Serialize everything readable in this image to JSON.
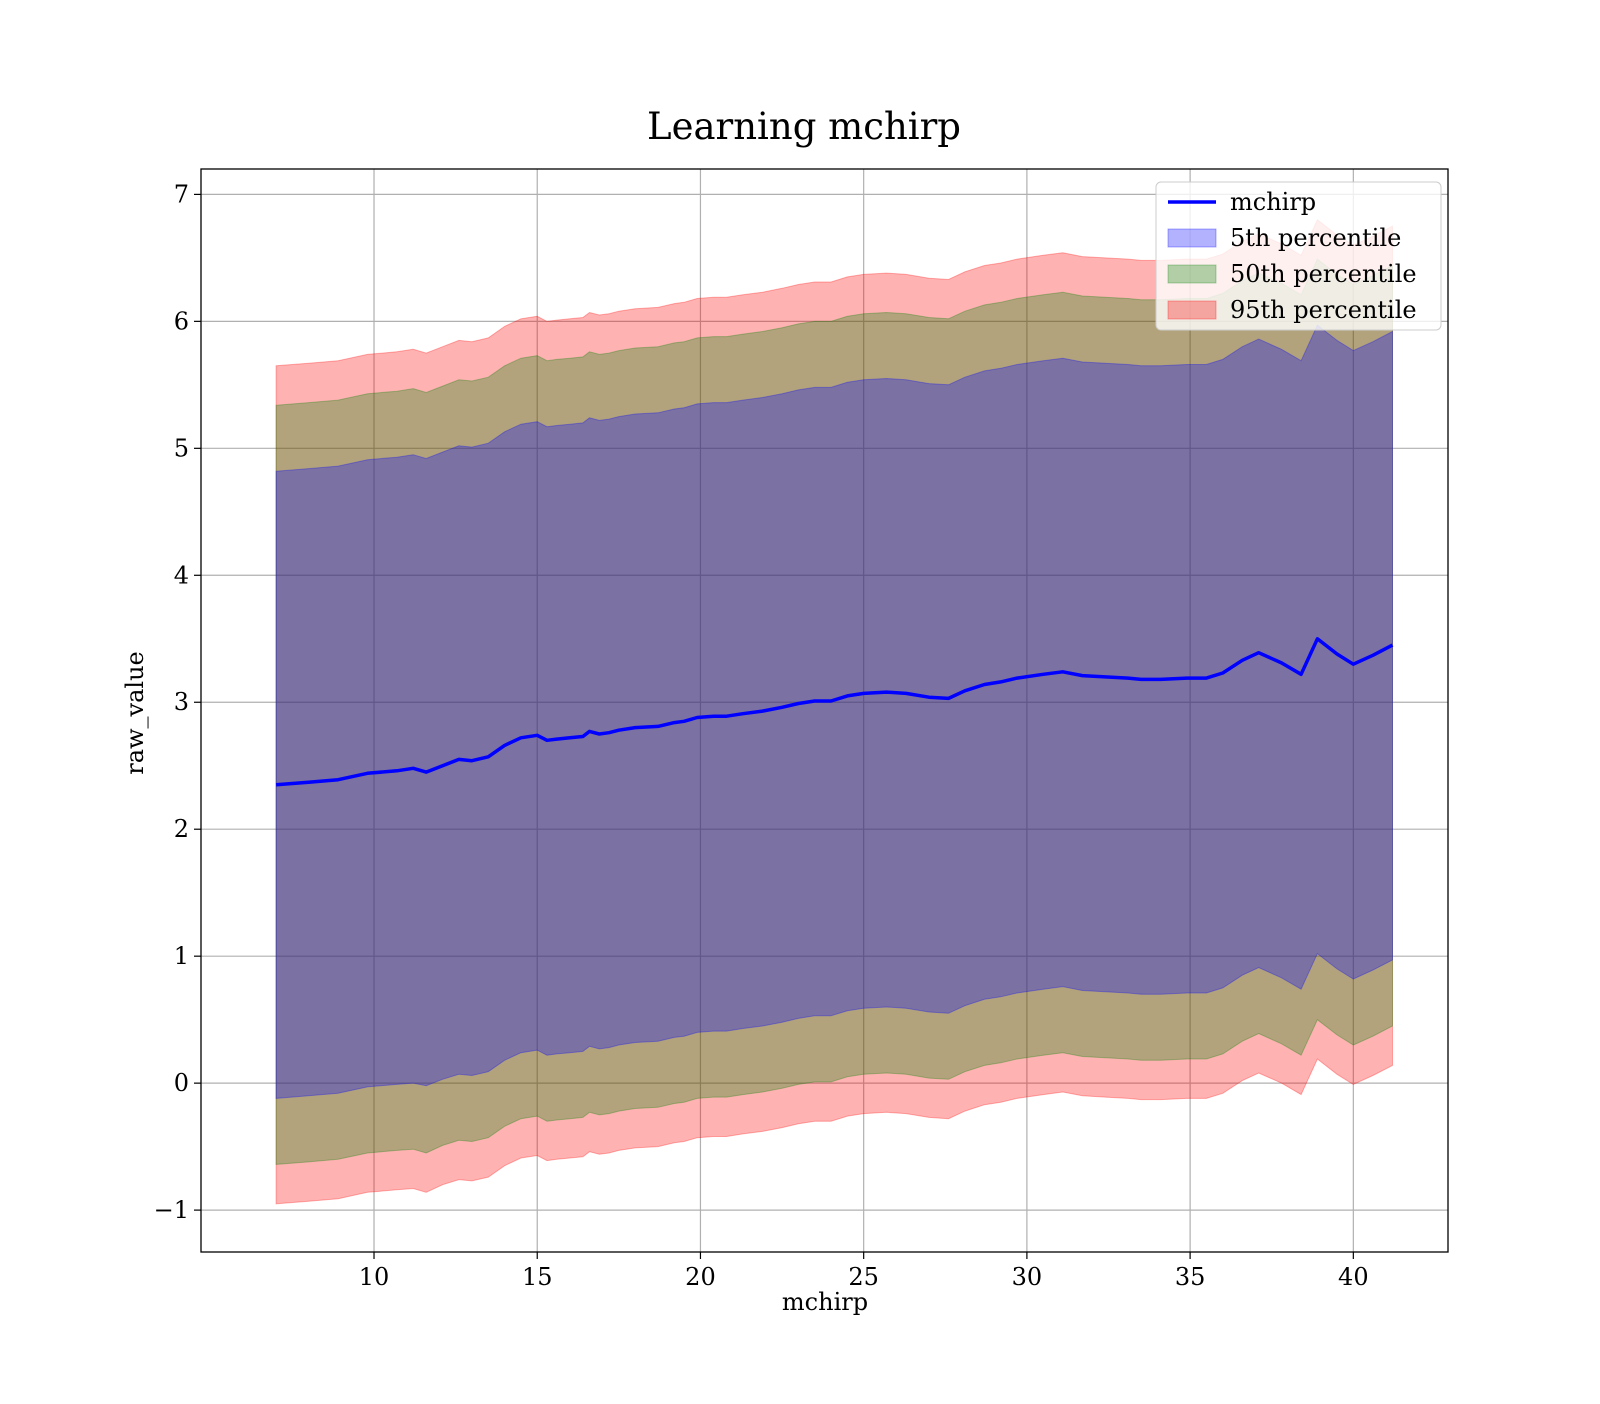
{
  "chart_data": {
    "type": "area",
    "title": "Learning mchirp",
    "xlabel": "mchirp",
    "ylabel": "raw_value",
    "xlim": [
      4.7,
      42.9
    ],
    "ylim": [
      -1.33,
      7.2
    ],
    "xticks": [
      10,
      15,
      20,
      25,
      30,
      35,
      40
    ],
    "yticks": [
      -1,
      0,
      1,
      2,
      3,
      4,
      5,
      6,
      7
    ],
    "ytick_labels": [
      "−1",
      "0",
      "1",
      "2",
      "3",
      "4",
      "5",
      "6",
      "7"
    ],
    "grid": true,
    "legend": {
      "position": "top-right",
      "entries": [
        {
          "label": "mchirp",
          "kind": "line",
          "color": "#0000ff"
        },
        {
          "label": "5th percentile",
          "kind": "patch",
          "color": "#0000ff"
        },
        {
          "label": "50th percentile",
          "kind": "patch",
          "color": "#008000"
        },
        {
          "label": "95th percentile",
          "kind": "patch",
          "color": "#ff0000"
        }
      ]
    },
    "colors": {
      "line": "#0000ff",
      "band5": "#0000ff",
      "band50": "#008000",
      "band95": "#ff0000",
      "grid": "#b0b0b0"
    },
    "x": [
      7.0,
      8.0,
      8.9,
      9.8,
      10.7,
      11.2,
      11.6,
      12.1,
      12.6,
      13.0,
      13.5,
      14.0,
      14.5,
      15.0,
      15.3,
      15.6,
      16.0,
      16.4,
      16.6,
      16.9,
      17.2,
      17.5,
      18.0,
      18.7,
      19.2,
      19.5,
      19.9,
      20.4,
      20.8,
      21.3,
      21.9,
      22.5,
      23.0,
      23.5,
      24.0,
      24.5,
      25.0,
      25.7,
      26.3,
      27.0,
      27.6,
      28.1,
      28.7,
      29.2,
      29.7,
      30.5,
      31.1,
      31.7,
      32.4,
      33.1,
      33.5,
      34.1,
      34.9,
      35.5,
      36.0,
      36.6,
      37.1,
      37.8,
      38.4,
      38.9,
      39.5,
      40.0,
      40.6,
      41.2
    ],
    "series": [
      {
        "name": "mchirp",
        "values": [
          2.35,
          2.37,
          2.39,
          2.44,
          2.46,
          2.48,
          2.45,
          2.5,
          2.55,
          2.54,
          2.57,
          2.66,
          2.72,
          2.74,
          2.7,
          2.71,
          2.72,
          2.73,
          2.77,
          2.75,
          2.76,
          2.78,
          2.8,
          2.81,
          2.84,
          2.85,
          2.88,
          2.89,
          2.89,
          2.91,
          2.93,
          2.96,
          2.99,
          3.01,
          3.01,
          3.05,
          3.07,
          3.08,
          3.07,
          3.04,
          3.03,
          3.09,
          3.14,
          3.16,
          3.19,
          3.22,
          3.24,
          3.21,
          3.2,
          3.19,
          3.18,
          3.18,
          3.19,
          3.19,
          3.23,
          3.33,
          3.39,
          3.31,
          3.22,
          3.5,
          3.38,
          3.3,
          3.37,
          3.45
        ]
      },
      {
        "name": "5th percentile",
        "lower": [
          -0.12,
          -0.1,
          -0.08,
          -0.03,
          -0.01,
          0.0,
          -0.02,
          0.03,
          0.07,
          0.06,
          0.09,
          0.18,
          0.24,
          0.26,
          0.22,
          0.23,
          0.24,
          0.25,
          0.29,
          0.27,
          0.28,
          0.3,
          0.32,
          0.33,
          0.36,
          0.37,
          0.4,
          0.41,
          0.41,
          0.43,
          0.45,
          0.48,
          0.51,
          0.53,
          0.53,
          0.57,
          0.59,
          0.6,
          0.59,
          0.56,
          0.55,
          0.61,
          0.66,
          0.68,
          0.71,
          0.74,
          0.76,
          0.73,
          0.72,
          0.71,
          0.7,
          0.7,
          0.71,
          0.71,
          0.75,
          0.85,
          0.91,
          0.83,
          0.74,
          1.02,
          0.9,
          0.82,
          0.89,
          0.97
        ],
        "upper": [
          4.82,
          4.84,
          4.86,
          4.91,
          4.93,
          4.95,
          4.92,
          4.97,
          5.02,
          5.01,
          5.04,
          5.13,
          5.19,
          5.21,
          5.17,
          5.18,
          5.19,
          5.2,
          5.24,
          5.22,
          5.23,
          5.25,
          5.27,
          5.28,
          5.31,
          5.32,
          5.35,
          5.36,
          5.36,
          5.38,
          5.4,
          5.43,
          5.46,
          5.48,
          5.48,
          5.52,
          5.54,
          5.55,
          5.54,
          5.51,
          5.5,
          5.56,
          5.61,
          5.63,
          5.66,
          5.69,
          5.71,
          5.68,
          5.67,
          5.66,
          5.65,
          5.65,
          5.66,
          5.66,
          5.7,
          5.8,
          5.86,
          5.78,
          5.69,
          5.97,
          5.85,
          5.77,
          5.84,
          5.92
        ]
      },
      {
        "name": "50th percentile",
        "lower": [
          -0.64,
          -0.62,
          -0.6,
          -0.55,
          -0.53,
          -0.52,
          -0.55,
          -0.49,
          -0.45,
          -0.46,
          -0.43,
          -0.34,
          -0.28,
          -0.26,
          -0.3,
          -0.29,
          -0.28,
          -0.27,
          -0.23,
          -0.25,
          -0.24,
          -0.22,
          -0.2,
          -0.19,
          -0.16,
          -0.15,
          -0.12,
          -0.11,
          -0.11,
          -0.09,
          -0.07,
          -0.04,
          -0.01,
          0.01,
          0.01,
          0.05,
          0.07,
          0.08,
          0.07,
          0.04,
          0.03,
          0.09,
          0.14,
          0.16,
          0.19,
          0.22,
          0.24,
          0.21,
          0.2,
          0.19,
          0.18,
          0.18,
          0.19,
          0.19,
          0.23,
          0.33,
          0.39,
          0.31,
          0.22,
          0.5,
          0.38,
          0.3,
          0.37,
          0.45
        ],
        "upper": [
          5.34,
          5.36,
          5.38,
          5.43,
          5.45,
          5.47,
          5.44,
          5.49,
          5.54,
          5.53,
          5.56,
          5.65,
          5.71,
          5.73,
          5.69,
          5.7,
          5.71,
          5.72,
          5.76,
          5.74,
          5.75,
          5.77,
          5.79,
          5.8,
          5.83,
          5.84,
          5.87,
          5.88,
          5.88,
          5.9,
          5.92,
          5.95,
          5.98,
          6.0,
          6.0,
          6.04,
          6.06,
          6.07,
          6.06,
          6.03,
          6.02,
          6.08,
          6.13,
          6.15,
          6.18,
          6.21,
          6.23,
          6.2,
          6.19,
          6.18,
          6.17,
          6.17,
          6.18,
          6.18,
          6.22,
          6.32,
          6.38,
          6.3,
          6.21,
          6.49,
          6.37,
          6.29,
          6.36,
          6.44
        ]
      },
      {
        "name": "95th percentile",
        "lower": [
          -0.95,
          -0.93,
          -0.91,
          -0.86,
          -0.84,
          -0.83,
          -0.86,
          -0.8,
          -0.76,
          -0.77,
          -0.74,
          -0.65,
          -0.59,
          -0.57,
          -0.61,
          -0.6,
          -0.59,
          -0.58,
          -0.54,
          -0.56,
          -0.55,
          -0.53,
          -0.51,
          -0.5,
          -0.47,
          -0.46,
          -0.43,
          -0.42,
          -0.42,
          -0.4,
          -0.38,
          -0.35,
          -0.32,
          -0.3,
          -0.3,
          -0.26,
          -0.24,
          -0.23,
          -0.24,
          -0.27,
          -0.28,
          -0.22,
          -0.17,
          -0.15,
          -0.12,
          -0.09,
          -0.07,
          -0.1,
          -0.11,
          -0.12,
          -0.13,
          -0.13,
          -0.12,
          -0.12,
          -0.08,
          0.02,
          0.08,
          0.0,
          -0.09,
          0.19,
          0.07,
          -0.01,
          0.06,
          0.14
        ],
        "upper": [
          5.65,
          5.67,
          5.69,
          5.74,
          5.76,
          5.78,
          5.75,
          5.8,
          5.85,
          5.84,
          5.87,
          5.96,
          6.02,
          6.04,
          6.0,
          6.01,
          6.02,
          6.03,
          6.07,
          6.05,
          6.06,
          6.08,
          6.1,
          6.11,
          6.14,
          6.15,
          6.18,
          6.19,
          6.19,
          6.21,
          6.23,
          6.26,
          6.29,
          6.31,
          6.31,
          6.35,
          6.37,
          6.38,
          6.37,
          6.34,
          6.33,
          6.39,
          6.44,
          6.46,
          6.49,
          6.52,
          6.54,
          6.51,
          6.5,
          6.49,
          6.48,
          6.48,
          6.49,
          6.49,
          6.53,
          6.63,
          6.69,
          6.61,
          6.52,
          6.8,
          6.68,
          6.6,
          6.67,
          6.75
        ]
      }
    ]
  }
}
